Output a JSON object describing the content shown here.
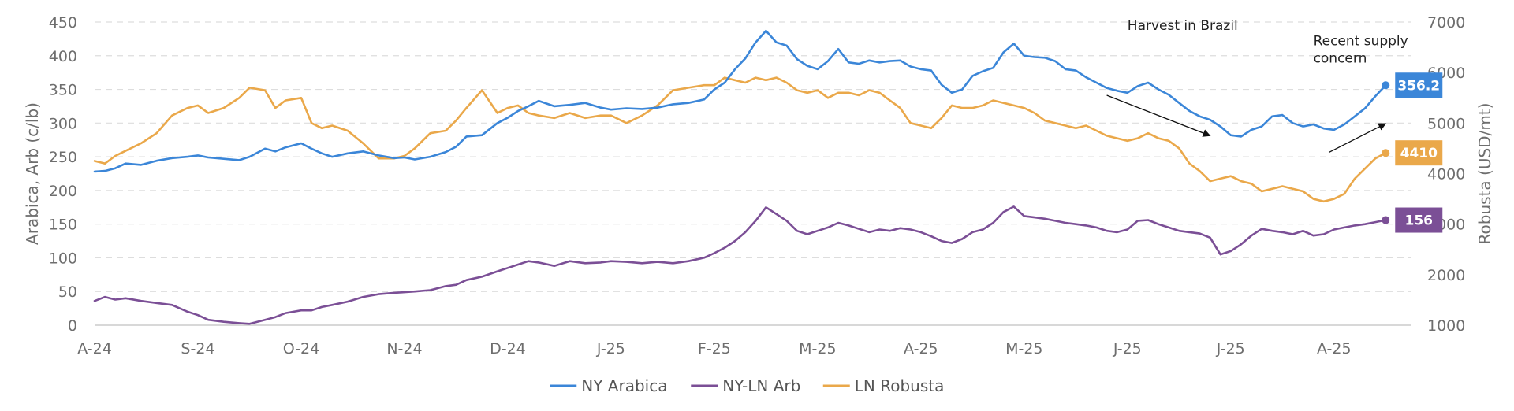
{
  "chart_data": {
    "type": "line",
    "title": "",
    "xlabel": "",
    "ylabel": "Arabica, Arb (c/lb)",
    "y2label": "Robusta (USD/mt)",
    "ylim": [
      0,
      450
    ],
    "y2lim": [
      1000,
      7000
    ],
    "yticks": [
      "0",
      "50",
      "100",
      "150",
      "200",
      "250",
      "300",
      "350",
      "400",
      "450"
    ],
    "y2ticks": [
      "1000",
      "2000",
      "3000",
      "4000",
      "5000",
      "6000",
      "7000"
    ],
    "xticks": [
      "A-24",
      "S-24",
      "O-24",
      "N-24",
      "D-24",
      "J-25",
      "F-25",
      "M-25",
      "A-25",
      "M-25",
      "J-25",
      "J-25",
      "A-25"
    ],
    "x_months": [
      0,
      1,
      2,
      3,
      4,
      5,
      6,
      7,
      8,
      9,
      10,
      11,
      12
    ],
    "xlim": [
      0,
      12.75
    ],
    "grid": true,
    "legend_position": "bottom-center",
    "series": [
      {
        "name": "NY Arabica",
        "axis": "left",
        "color": "#3b86d8",
        "end_label": "356.2",
        "x": [
          0,
          0.1,
          0.2,
          0.3,
          0.45,
          0.6,
          0.75,
          0.9,
          1.0,
          1.1,
          1.25,
          1.4,
          1.5,
          1.65,
          1.75,
          1.85,
          2.0,
          2.1,
          2.2,
          2.3,
          2.45,
          2.6,
          2.75,
          2.9,
          3.0,
          3.1,
          3.25,
          3.4,
          3.5,
          3.6,
          3.75,
          3.9,
          4.0,
          4.1,
          4.2,
          4.3,
          4.45,
          4.6,
          4.75,
          4.9,
          5.0,
          5.15,
          5.3,
          5.45,
          5.6,
          5.75,
          5.9,
          6.0,
          6.1,
          6.2,
          6.3,
          6.4,
          6.5,
          6.6,
          6.7,
          6.8,
          6.9,
          7.0,
          7.1,
          7.2,
          7.3,
          7.4,
          7.5,
          7.6,
          7.7,
          7.8,
          7.9,
          8.0,
          8.1,
          8.2,
          8.3,
          8.4,
          8.5,
          8.6,
          8.7,
          8.8,
          8.9,
          9.0,
          9.1,
          9.2,
          9.3,
          9.4,
          9.5,
          9.6,
          9.7,
          9.8,
          9.9,
          10.0,
          10.1,
          10.2,
          10.3,
          10.4,
          10.5,
          10.6,
          10.7,
          10.8,
          10.9,
          11.0,
          11.1,
          11.2,
          11.3,
          11.4,
          11.5,
          11.6,
          11.7,
          11.8,
          11.9,
          12.0,
          12.1,
          12.2,
          12.3,
          12.4,
          12.5
        ],
        "values": [
          228,
          229,
          233,
          240,
          238,
          244,
          248,
          250,
          252,
          249,
          247,
          245,
          250,
          262,
          258,
          264,
          270,
          262,
          255,
          250,
          255,
          258,
          252,
          248,
          249,
          246,
          250,
          257,
          265,
          280,
          282,
          300,
          308,
          318,
          325,
          333,
          325,
          327,
          330,
          323,
          320,
          322,
          321,
          323,
          328,
          330,
          335,
          350,
          360,
          380,
          396,
          420,
          437,
          420,
          415,
          395,
          385,
          380,
          392,
          410,
          390,
          388,
          393,
          390,
          392,
          393,
          384,
          380,
          378,
          357,
          345,
          350,
          370,
          377,
          382,
          405,
          418,
          400,
          398,
          397,
          392,
          380,
          378,
          368,
          360,
          352,
          348,
          345,
          355,
          360,
          350,
          342,
          330,
          318,
          310,
          305,
          295,
          282,
          280,
          290,
          295,
          310,
          312,
          300,
          295,
          298,
          292,
          290,
          298,
          310,
          322,
          340,
          356.2
        ]
      },
      {
        "name": "NY-LN Arb",
        "axis": "left",
        "color": "#7b4f96",
        "end_label": "156",
        "x": [
          0,
          0.1,
          0.2,
          0.3,
          0.45,
          0.6,
          0.75,
          0.9,
          1.0,
          1.1,
          1.25,
          1.4,
          1.5,
          1.65,
          1.75,
          1.85,
          2.0,
          2.1,
          2.2,
          2.3,
          2.45,
          2.6,
          2.75,
          2.9,
          3.0,
          3.1,
          3.25,
          3.4,
          3.5,
          3.6,
          3.75,
          3.9,
          4.0,
          4.1,
          4.2,
          4.3,
          4.45,
          4.6,
          4.75,
          4.9,
          5.0,
          5.15,
          5.3,
          5.45,
          5.6,
          5.75,
          5.9,
          6.0,
          6.1,
          6.2,
          6.3,
          6.4,
          6.5,
          6.6,
          6.7,
          6.8,
          6.9,
          7.0,
          7.1,
          7.2,
          7.3,
          7.4,
          7.5,
          7.6,
          7.7,
          7.8,
          7.9,
          8.0,
          8.1,
          8.2,
          8.3,
          8.4,
          8.5,
          8.6,
          8.7,
          8.8,
          8.9,
          9.0,
          9.1,
          9.2,
          9.3,
          9.4,
          9.5,
          9.6,
          9.7,
          9.8,
          9.9,
          10.0,
          10.1,
          10.2,
          10.3,
          10.4,
          10.5,
          10.6,
          10.7,
          10.8,
          10.9,
          11.0,
          11.1,
          11.2,
          11.3,
          11.4,
          11.5,
          11.6,
          11.7,
          11.8,
          11.9,
          12.0,
          12.1,
          12.2,
          12.3,
          12.4,
          12.5
        ],
        "values": [
          36,
          42,
          38,
          40,
          36,
          33,
          30,
          20,
          15,
          8,
          5,
          3,
          2,
          8,
          12,
          18,
          22,
          22,
          27,
          30,
          35,
          42,
          46,
          48,
          49,
          50,
          52,
          58,
          60,
          67,
          72,
          80,
          85,
          90,
          95,
          93,
          88,
          95,
          92,
          93,
          95,
          94,
          92,
          94,
          92,
          95,
          100,
          107,
          115,
          125,
          138,
          155,
          175,
          165,
          155,
          140,
          135,
          140,
          145,
          152,
          148,
          143,
          138,
          142,
          140,
          144,
          142,
          138,
          132,
          125,
          122,
          128,
          138,
          142,
          152,
          168,
          176,
          162,
          160,
          158,
          155,
          152,
          150,
          148,
          145,
          140,
          138,
          142,
          155,
          156,
          150,
          145,
          140,
          138,
          136,
          130,
          105,
          110,
          120,
          133,
          143,
          140,
          138,
          135,
          140,
          133,
          135,
          142,
          145,
          148,
          150,
          153,
          156
        ]
      },
      {
        "name": "LN Robusta",
        "axis": "right",
        "color": "#eaa84a",
        "end_label": "4410",
        "x": [
          0,
          0.1,
          0.2,
          0.3,
          0.45,
          0.6,
          0.75,
          0.9,
          1.0,
          1.1,
          1.25,
          1.4,
          1.5,
          1.65,
          1.75,
          1.85,
          2.0,
          2.1,
          2.2,
          2.3,
          2.45,
          2.6,
          2.75,
          2.9,
          3.0,
          3.1,
          3.25,
          3.4,
          3.5,
          3.6,
          3.75,
          3.9,
          4.0,
          4.1,
          4.2,
          4.3,
          4.45,
          4.6,
          4.75,
          4.9,
          5.0,
          5.15,
          5.3,
          5.45,
          5.6,
          5.75,
          5.9,
          6.0,
          6.1,
          6.2,
          6.3,
          6.4,
          6.5,
          6.6,
          6.7,
          6.8,
          6.9,
          7.0,
          7.1,
          7.2,
          7.3,
          7.4,
          7.5,
          7.6,
          7.7,
          7.8,
          7.9,
          8.0,
          8.1,
          8.2,
          8.3,
          8.4,
          8.5,
          8.6,
          8.7,
          8.8,
          8.9,
          9.0,
          9.1,
          9.2,
          9.3,
          9.4,
          9.5,
          9.6,
          9.7,
          9.8,
          9.9,
          10.0,
          10.1,
          10.2,
          10.3,
          10.4,
          10.5,
          10.6,
          10.7,
          10.8,
          10.9,
          11.0,
          11.1,
          11.2,
          11.3,
          11.4,
          11.5,
          11.6,
          11.7,
          11.8,
          11.9,
          12.0,
          12.1,
          12.2,
          12.3,
          12.4,
          12.5
        ],
        "values": [
          4250,
          4200,
          4350,
          4450,
          4600,
          4800,
          5150,
          5300,
          5350,
          5200,
          5300,
          5500,
          5700,
          5650,
          5300,
          5450,
          5500,
          5000,
          4900,
          4950,
          4850,
          4600,
          4300,
          4300,
          4350,
          4500,
          4800,
          4850,
          5050,
          5300,
          5650,
          5200,
          5300,
          5350,
          5200,
          5150,
          5100,
          5200,
          5100,
          5150,
          5150,
          5000,
          5150,
          5350,
          5650,
          5700,
          5750,
          5750,
          5900,
          5850,
          5800,
          5900,
          5850,
          5900,
          5800,
          5650,
          5600,
          5650,
          5500,
          5600,
          5600,
          5550,
          5650,
          5600,
          5450,
          5300,
          5000,
          4950,
          4900,
          5100,
          5350,
          5300,
          5300,
          5350,
          5450,
          5400,
          5350,
          5300,
          5200,
          5050,
          5000,
          4950,
          4900,
          4950,
          4850,
          4750,
          4700,
          4650,
          4700,
          4800,
          4700,
          4650,
          4500,
          4200,
          4050,
          3850,
          3900,
          3950,
          3850,
          3800,
          3650,
          3700,
          3750,
          3700,
          3650,
          3500,
          3450,
          3500,
          3600,
          3900,
          4100,
          4300,
          4410
        ]
      }
    ],
    "annotations": [
      {
        "text": "Harvest in Brazil",
        "x": 10.0,
        "y": 7000,
        "axis": "right",
        "arrow_from": [
          9.8,
          5550
        ],
        "arrow_to": [
          10.8,
          4750
        ]
      },
      {
        "text": "Recent supply concern",
        "lines": [
          "Recent supply",
          "concern"
        ],
        "x": 11.8,
        "y": 6700,
        "axis": "right",
        "arrow_from": [
          11.95,
          4420
        ],
        "arrow_to": [
          12.5,
          4990
        ]
      }
    ]
  }
}
